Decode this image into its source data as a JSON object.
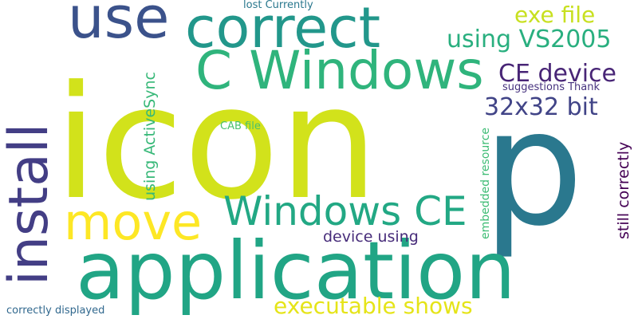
{
  "word_cloud": {
    "background": "#ffffff",
    "words": [
      {
        "id": "icon",
        "text": "icon",
        "color": "#d2e21b"
      },
      {
        "id": "p",
        "text": "p",
        "color": "#2a788e"
      },
      {
        "id": "application",
        "text": "application",
        "color": "#21a585"
      },
      {
        "id": "install",
        "text": "install",
        "color": "#433e85"
      },
      {
        "id": "use",
        "text": "use",
        "color": "#3b528b"
      },
      {
        "id": "correct",
        "text": "correct",
        "color": "#22978b"
      },
      {
        "id": "cwindows",
        "text": "C Windows",
        "color": "#2fb47c"
      },
      {
        "id": "windowsce",
        "text": "Windows CE",
        "color": "#22a884"
      },
      {
        "id": "move",
        "text": "move",
        "color": "#fde725"
      },
      {
        "id": "vs2005",
        "text": "using VS2005",
        "color": "#29af7f"
      },
      {
        "id": "exefile",
        "text": "exe file",
        "color": "#c8e020"
      },
      {
        "id": "cedevice",
        "text": "CE device",
        "color": "#482576"
      },
      {
        "id": "bit",
        "text": "32x32 bit",
        "color": "#414487"
      },
      {
        "id": "executable",
        "text": "executable shows",
        "color": "#e5e419"
      },
      {
        "id": "deviceusing",
        "text": "device using",
        "color": "#472c7a"
      },
      {
        "id": "activesync",
        "text": "using ActiveSync",
        "color": "#37b878"
      },
      {
        "id": "correctly",
        "text": "still correctly",
        "color": "#440154"
      },
      {
        "id": "embedded",
        "text": "embedded resource",
        "color": "#3dbc74"
      },
      {
        "id": "suggest",
        "text": "suggestions Thank",
        "color": "#46327e"
      },
      {
        "id": "cab",
        "text": "CAB file",
        "color": "#4ac16d"
      },
      {
        "id": "lost",
        "text": "lost Currently",
        "color": "#2a788e"
      },
      {
        "id": "displayed",
        "text": "correctly displayed",
        "color": "#31688e"
      }
    ]
  }
}
